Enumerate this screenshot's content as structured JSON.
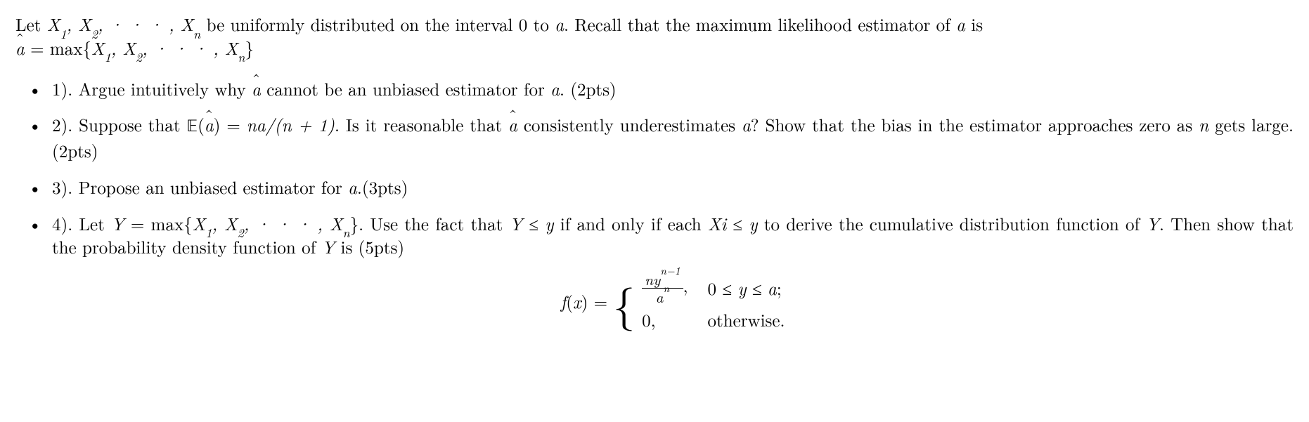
{
  "preamble": {
    "a": "Let ",
    "seq": "X₁, X₂, · · · , Xₙ",
    "b": " be uniformly distributed on the interval 0 to ",
    "avar": "a",
    "c": ".  Recall that the maximum likelihood estimator of ",
    "avar2": "a",
    "d": " is ",
    "line2a": " = max{",
    "line2seq": "X₁, X₂, · · · , Xₙ",
    "line2b": "}"
  },
  "items": {
    "p1": {
      "a": "1). Argue intuitively why ",
      "b": " cannot be an unbiased estimator for ",
      "avar": "a",
      "c": ". (2pts)"
    },
    "p2": {
      "a": "2). Suppose that ",
      "E": "𝔼",
      "lp": "(",
      "rp": ") = ",
      "frac": "na/(n + 1)",
      "b": ". Is it reasonable that ",
      "c": " consistently underestimates ",
      "avar": "a",
      "d": "? Show that the bias in the estimator approaches zero as ",
      "nvar": "n",
      "e": " gets large. (2pts)"
    },
    "p3": {
      "a": "3). Propose an unbiased estimator for ",
      "avar": "a",
      "b": ".(3pts)"
    },
    "p4": {
      "a": "4).  Let ",
      "Y": "Y",
      "eq": " = max{",
      "seq": "X₁, X₂, · · · , Xₙ",
      "rb": "}.  Use the fact that ",
      "Y2": "Y",
      "le1": " ≤ ",
      "yv": "y",
      "iff": " if and only if each ",
      "Xi": "Xi",
      "le2": " ≤ ",
      "yv2": "y",
      "b": " to derive the cumulative distribution function of ",
      "Y3": "Y",
      "c": ". Then show that the probability density function of ",
      "Y4": "Y",
      "d": " is (5pts)"
    }
  },
  "piecewise": {
    "lhs_f": "f",
    "lhs_x": "x",
    "lhs_eq": ") = ",
    "case1_num_a": "ny",
    "case1_num_exp": "n−1",
    "case1_den_a": "a",
    "case1_den_exp": "n",
    "case1_comma": ",",
    "case1_cond_a": "0 ≤ ",
    "case1_cond_y": "y",
    "case1_cond_b": " ≤ ",
    "case1_cond_c": "a",
    "case1_cond_d": ";",
    "case2_val": "0,",
    "case2_cond": "otherwise."
  }
}
